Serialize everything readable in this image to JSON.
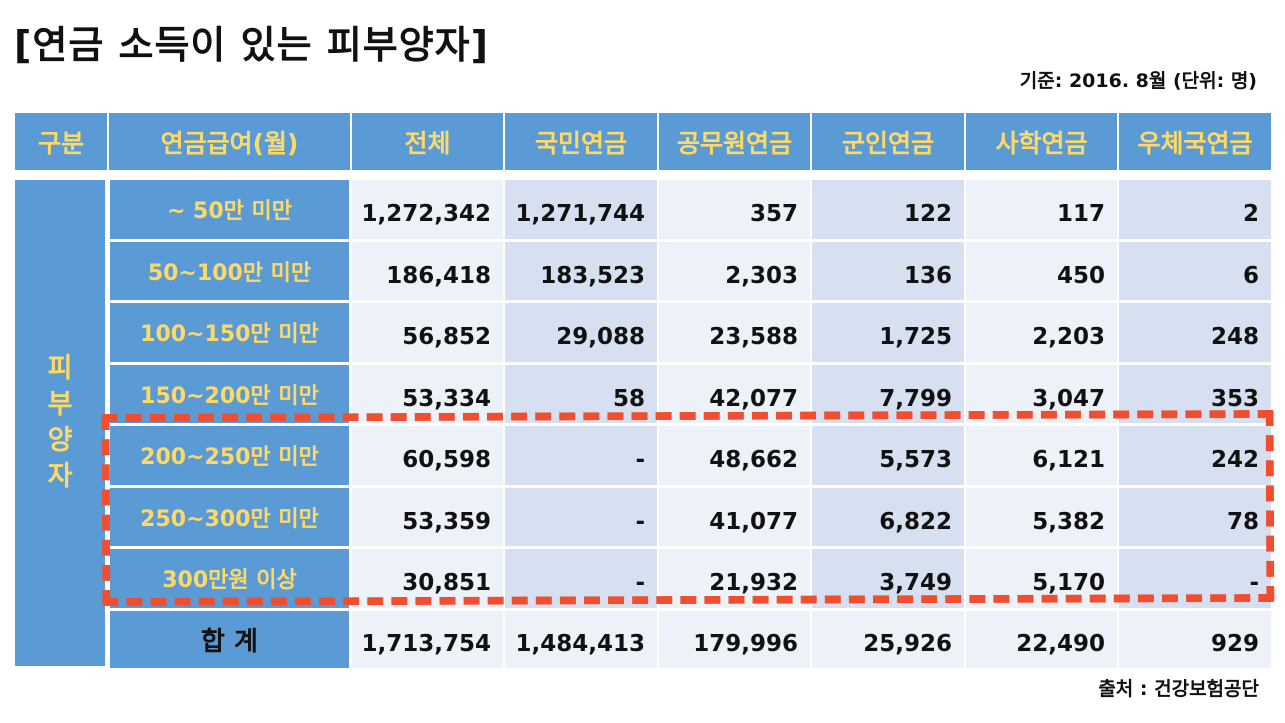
{
  "title": "[연금 소득이 있는 피부양자]",
  "basis": "기준: 2016. 8월 (단위: 명)",
  "source": "출처 : 건강보험공단",
  "table": {
    "headers": [
      "구분",
      "연금급여(월)",
      "전체",
      "국민연금",
      "공무원연금",
      "군인연금",
      "사학연금",
      "우체국연금"
    ],
    "group_label": [
      "피",
      "부",
      "양",
      "자"
    ],
    "rows": [
      {
        "label": "~ 50만 미만",
        "values": [
          "1,272,342",
          "1,271,744",
          "357",
          "122",
          "117",
          "2"
        ]
      },
      {
        "label": "50~100만 미만",
        "values": [
          "186,418",
          "183,523",
          "2,303",
          "136",
          "450",
          "6"
        ]
      },
      {
        "label": "100~150만 미만",
        "values": [
          "56,852",
          "29,088",
          "23,588",
          "1,725",
          "2,203",
          "248"
        ]
      },
      {
        "label": "150~200만 미만",
        "values": [
          "53,334",
          "58",
          "42,077",
          "7,799",
          "3,047",
          "353"
        ]
      },
      {
        "label": "200~250만 미만",
        "values": [
          "60,598",
          "-",
          "48,662",
          "5,573",
          "6,121",
          "242"
        ]
      },
      {
        "label": "250~300만 미만",
        "values": [
          "53,359",
          "-",
          "41,077",
          "6,822",
          "5,382",
          "78"
        ]
      },
      {
        "label": "300만원 이상",
        "values": [
          "30,851",
          "-",
          "21,932",
          "3,749",
          "5,170",
          "-"
        ]
      }
    ],
    "total": {
      "label": "합 계",
      "values": [
        "1,713,754",
        "1,484,413",
        "179,996",
        "25,926",
        "22,490",
        "929"
      ]
    }
  },
  "colors": {
    "header_bg": "#5b9bd5",
    "header_text": "#ffd966",
    "dash": "#f04e2e"
  }
}
